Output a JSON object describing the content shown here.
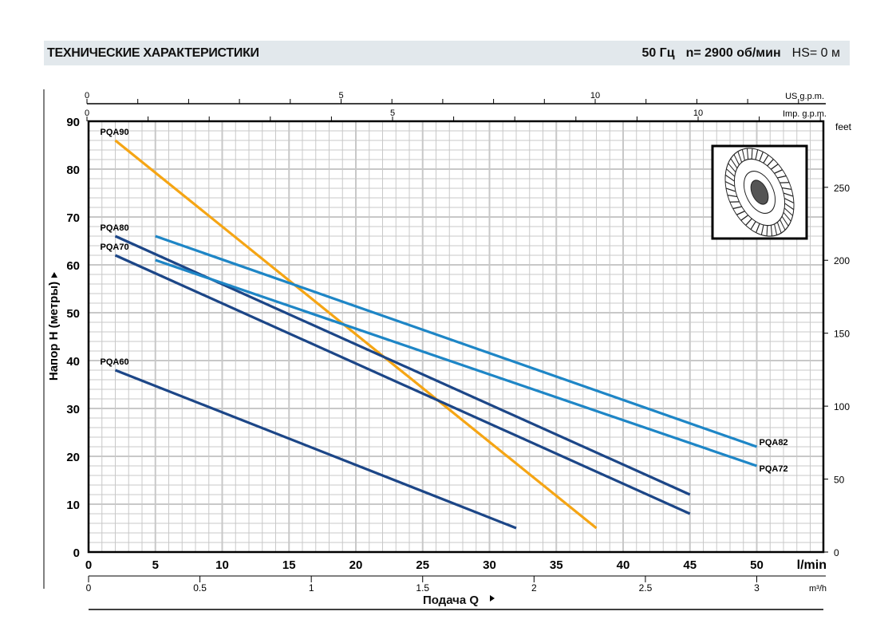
{
  "header": {
    "title": "ТЕХНИЧЕСКИЕ ХАРАКТЕРИСТИКИ",
    "freq": "50 Гц",
    "speed": "n= 2900  об/мин",
    "hs": "HS= 0 м"
  },
  "chart_data": {
    "type": "line",
    "title": "ТЕХНИЧЕСКИЕ ХАРАКТЕРИСТИКИ",
    "xlabel": "Подача Q",
    "ylabel": "Напор Н  (метры)",
    "xunit": "l/min",
    "xlim": [
      0,
      55
    ],
    "ylim": [
      0,
      90
    ],
    "xticks": [
      0,
      5,
      10,
      15,
      20,
      25,
      30,
      35,
      40,
      45,
      50
    ],
    "yticks": [
      0,
      10,
      20,
      30,
      40,
      50,
      60,
      70,
      80,
      90
    ],
    "secondary_axes": {
      "m3h": {
        "unit": "m³/h",
        "ticks": [
          "0",
          "0.5",
          "1",
          "1.5",
          "2",
          "2.5",
          "3"
        ]
      },
      "us_gpm": {
        "unit": "US g.p.m.",
        "ticks": [
          "0",
          "5",
          "10"
        ]
      },
      "imp_gpm": {
        "unit": "Imp. g.p.m.",
        "ticks": [
          "0",
          "5",
          "10"
        ]
      },
      "feet": {
        "unit": "feet",
        "ticks": [
          "0",
          "50",
          "100",
          "150",
          "200",
          "250"
        ]
      }
    },
    "grid": true,
    "series": [
      {
        "name": "PQA90",
        "color": "#f5a514",
        "x": [
          2,
          38
        ],
        "y": [
          86,
          5
        ],
        "label_pos": "start"
      },
      {
        "name": "PQA80",
        "color": "#1c4687",
        "x": [
          2,
          45
        ],
        "y": [
          66,
          12
        ],
        "label_pos": "start"
      },
      {
        "name": "PQA70",
        "color": "#1c4687",
        "x": [
          2,
          45
        ],
        "y": [
          62,
          8
        ],
        "label_pos": "start"
      },
      {
        "name": "PQA60",
        "color": "#1c4687",
        "x": [
          2,
          32
        ],
        "y": [
          38,
          5
        ],
        "label_pos": "start"
      },
      {
        "name": "PQA82",
        "color": "#1e86c6",
        "x": [
          5,
          50
        ],
        "y": [
          66,
          22
        ],
        "label_pos": "end"
      },
      {
        "name": "PQA72",
        "color": "#1e86c6",
        "x": [
          5,
          50
        ],
        "y": [
          61,
          18
        ],
        "label_pos": "end"
      }
    ]
  }
}
